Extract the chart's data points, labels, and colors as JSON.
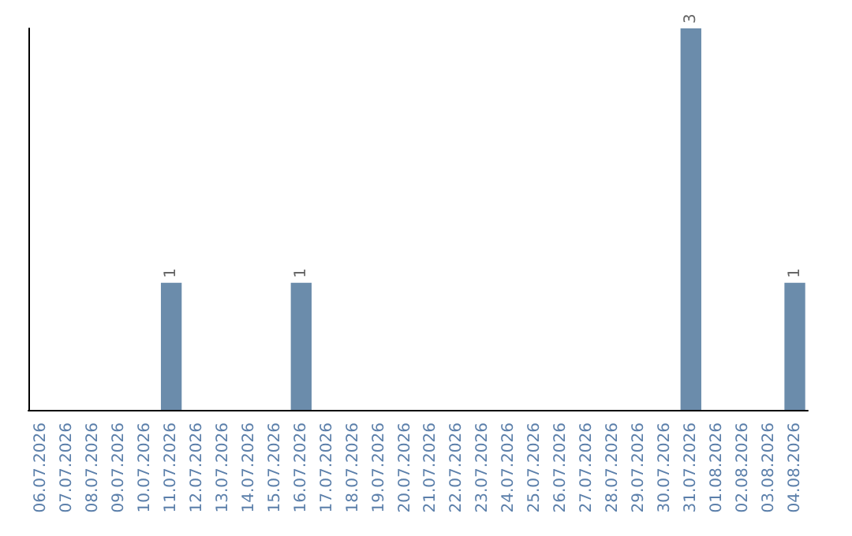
{
  "chart_data": {
    "type": "bar",
    "categories": [
      "06.07.2026",
      "07.07.2026",
      "08.07.2026",
      "09.07.2026",
      "10.07.2026",
      "11.07.2026",
      "12.07.2026",
      "13.07.2026",
      "14.07.2026",
      "15.07.2026",
      "16.07.2026",
      "17.07.2026",
      "18.07.2026",
      "19.07.2026",
      "20.07.2026",
      "21.07.2026",
      "22.07.2026",
      "23.07.2026",
      "24.07.2026",
      "25.07.2026",
      "26.07.2026",
      "27.07.2026",
      "28.07.2026",
      "29.07.2026",
      "30.07.2026",
      "31.07.2026",
      "01.08.2026",
      "02.08.2026",
      "03.08.2026",
      "04.08.2026"
    ],
    "values": [
      0,
      0,
      0,
      0,
      0,
      1,
      0,
      0,
      0,
      0,
      1,
      0,
      0,
      0,
      0,
      0,
      0,
      0,
      0,
      0,
      0,
      0,
      0,
      0,
      0,
      3,
      0,
      0,
      0,
      1
    ],
    "value_labels": [
      null,
      null,
      null,
      null,
      null,
      "1",
      null,
      null,
      null,
      null,
      "1",
      null,
      null,
      null,
      null,
      null,
      null,
      null,
      null,
      null,
      null,
      null,
      null,
      null,
      null,
      "3",
      null,
      null,
      null,
      "1"
    ],
    "color": "#6b8cab",
    "tick_labels": "x"
  }
}
